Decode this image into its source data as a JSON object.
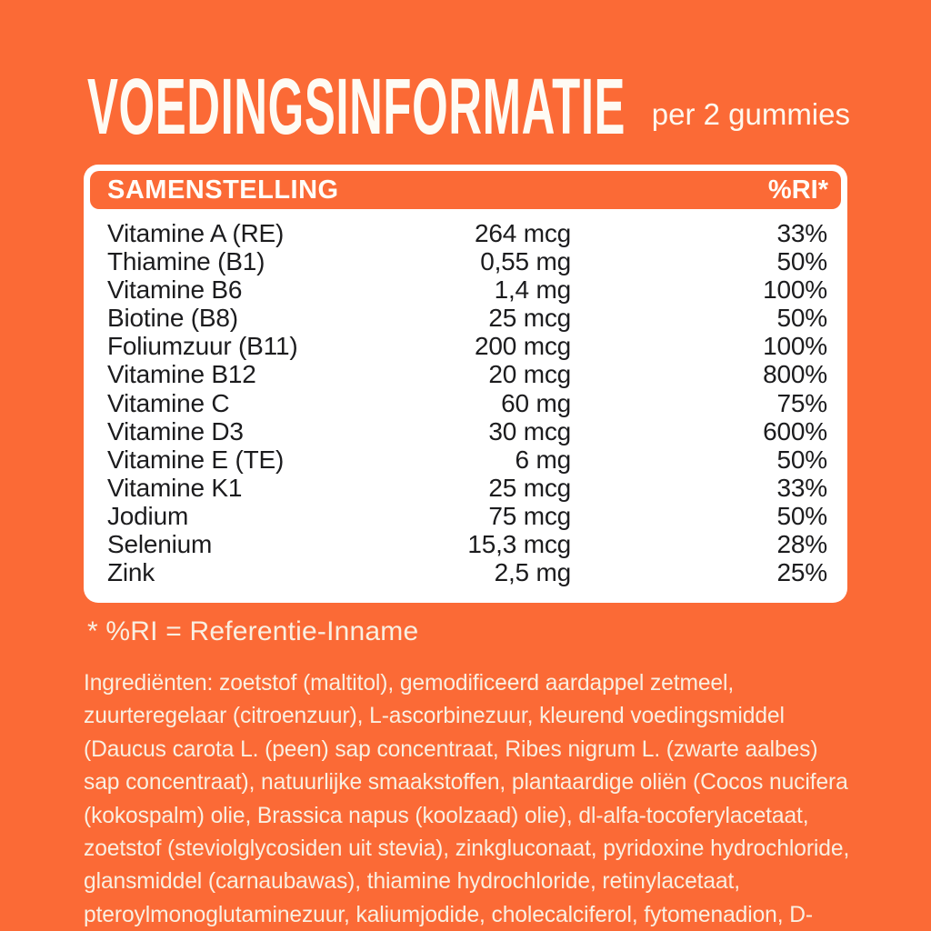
{
  "header": {
    "title": "VOEDINGSINFORMATIE",
    "serving": "per 2 gummies"
  },
  "table": {
    "header": {
      "composition": "SAMENSTELLING",
      "ri": "%RI*"
    },
    "rows": [
      {
        "name": "Vitamine A (RE)",
        "amount": "264 mcg",
        "ri": "33%"
      },
      {
        "name": "Thiamine (B1)",
        "amount": "0,55 mg",
        "ri": "50%"
      },
      {
        "name": "Vitamine B6",
        "amount": "1,4 mg",
        "ri": "100%"
      },
      {
        "name": "Biotine (B8)",
        "amount": "25 mcg",
        "ri": "50%"
      },
      {
        "name": "Foliumzuur (B11)",
        "amount": "200 mcg",
        "ri": "100%"
      },
      {
        "name": "Vitamine B12",
        "amount": "20 mcg",
        "ri": "800%"
      },
      {
        "name": "Vitamine C",
        "amount": "60 mg",
        "ri": "75%"
      },
      {
        "name": "Vitamine D3",
        "amount": "30 mcg",
        "ri": "600%"
      },
      {
        "name": "Vitamine E (TE)",
        "amount": "6 mg",
        "ri": "50%"
      },
      {
        "name": "Vitamine K1",
        "amount": "25 mcg",
        "ri": "33%"
      },
      {
        "name": "Jodium",
        "amount": "75 mcg",
        "ri": "50%"
      },
      {
        "name": "Selenium",
        "amount": "15,3 mcg",
        "ri": "28%"
      },
      {
        "name": "Zink",
        "amount": "2,5 mg",
        "ri": "25%"
      }
    ]
  },
  "footnote": "* %RI = Referentie-Inname",
  "ingredients": "Ingrediënten: zoetstof (maltitol), gemodificeerd aardappel zetmeel, zuurteregelaar (citroenzuur), L-ascorbinezuur, kleurend voedingsmiddel (Daucus carota L. (peen) sap concentraat, Ribes nigrum L. (zwarte aalbes) sap concentraat), natuurlijke smaakstoffen, plantaardige oliën (Cocos nucifera (kokospalm) olie, Brassica napus (koolzaad) olie), dl-alfa-tocoferylacetaat, zoetstof (steviolglycosiden uit stevia), zinkgluconaat, pyridoxine hydrochloride, glansmiddel (carnaubawas), thiamine hydrochloride, retinylacetaat, pteroylmonoglutaminezuur, kaliumjodide, cholecalciferol, fytomenadion, D-biotine, cyanocobalamine, natriumselenaat.",
  "colors": {
    "background_orange": "#FB6A36",
    "panel_white": "#FFFFFF",
    "table_text": "#1C1C1E",
    "cream_text": "#F9EFE1"
  }
}
